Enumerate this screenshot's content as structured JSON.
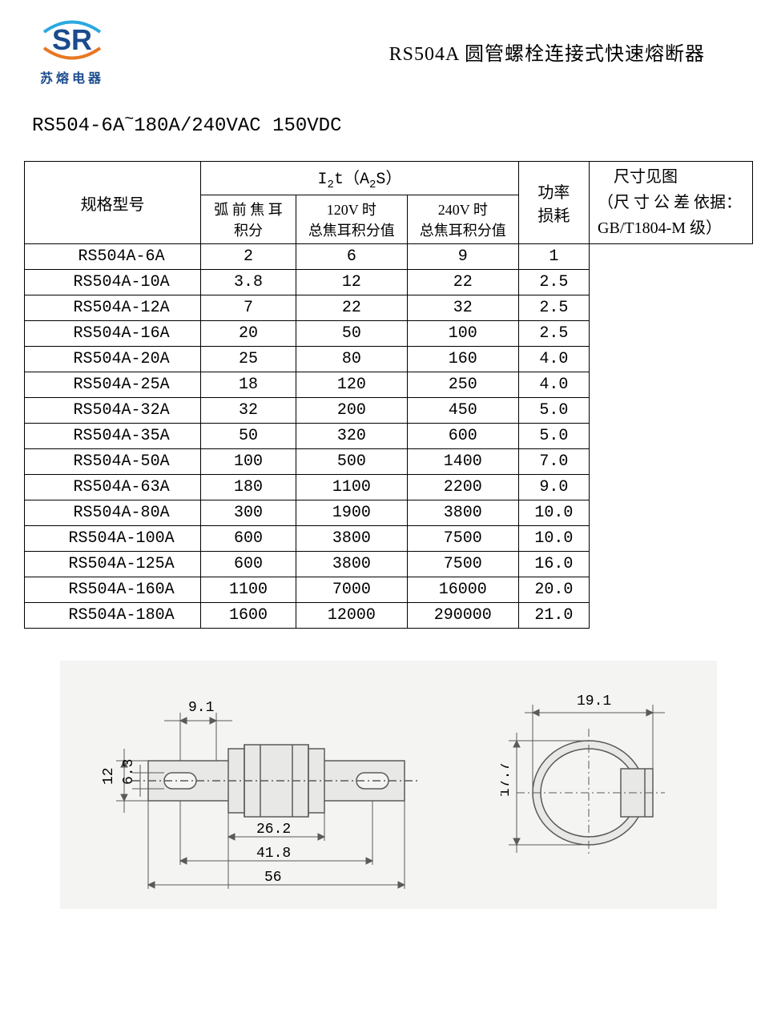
{
  "logo": {
    "company": "苏熔电器"
  },
  "title": "RS504A 圆管螺栓连接式快速熔断器",
  "subtitle": "RS504-6A~180A/240VAC 150VDC",
  "headers": {
    "model": "规格型号",
    "i2t": "I₂t（A₂S）",
    "pre_arc": "弧 前 焦 耳积分",
    "v120": "120V 时总焦耳积分值",
    "v240": "240V 时总焦耳积分值",
    "power_loss": "功率损耗",
    "dim_note": "尺寸见图（尺 寸 公 差 依据：GB/T1804-M 级）"
  },
  "rows": [
    {
      "model": "RS504A-6A",
      "pre": "2",
      "v120": "6",
      "v240": "9",
      "pl": "1"
    },
    {
      "model": "RS504A-10A",
      "pre": "3.8",
      "v120": "12",
      "v240": "22",
      "pl": "2.5"
    },
    {
      "model": "RS504A-12A",
      "pre": "7",
      "v120": "22",
      "v240": "32",
      "pl": "2.5"
    },
    {
      "model": "RS504A-16A",
      "pre": "20",
      "v120": "50",
      "v240": "100",
      "pl": "2.5"
    },
    {
      "model": "RS504A-20A",
      "pre": "25",
      "v120": "80",
      "v240": "160",
      "pl": "4.0"
    },
    {
      "model": "RS504A-25A",
      "pre": "18",
      "v120": "120",
      "v240": "250",
      "pl": "4.0"
    },
    {
      "model": "RS504A-32A",
      "pre": "32",
      "v120": "200",
      "v240": "450",
      "pl": "5.0"
    },
    {
      "model": "RS504A-35A",
      "pre": "50",
      "v120": "320",
      "v240": "600",
      "pl": "5.0"
    },
    {
      "model": "RS504A-50A",
      "pre": "100",
      "v120": "500",
      "v240": "1400",
      "pl": "7.0"
    },
    {
      "model": "RS504A-63A",
      "pre": "180",
      "v120": "1100",
      "v240": "2200",
      "pl": "9.0"
    },
    {
      "model": "RS504A-80A",
      "pre": "300",
      "v120": "1900",
      "v240": "3800",
      "pl": "10.0"
    },
    {
      "model": "RS504A-100A",
      "pre": "600",
      "v120": "3800",
      "v240": "7500",
      "pl": "10.0"
    },
    {
      "model": "RS504A-125A",
      "pre": "600",
      "v120": "3800",
      "v240": "7500",
      "pl": "16.0"
    },
    {
      "model": "RS504A-160A",
      "pre": "1100",
      "v120": "7000",
      "v240": "16000",
      "pl": "20.0"
    },
    {
      "model": "RS504A-180A",
      "pre": "1600",
      "v120": "12000",
      "v240": "290000",
      "pl": "21.0"
    }
  ],
  "diagram": {
    "dims": {
      "d1": "9.1",
      "d2": "12",
      "d3": "6.3",
      "d4": "26.2",
      "d5": "41.8",
      "d6": "56",
      "d7": "19.1",
      "d8": "17.7"
    },
    "colors": {
      "bg": "#f4f4f2",
      "line": "#5a5a58",
      "fill": "#e8e8e6"
    }
  }
}
